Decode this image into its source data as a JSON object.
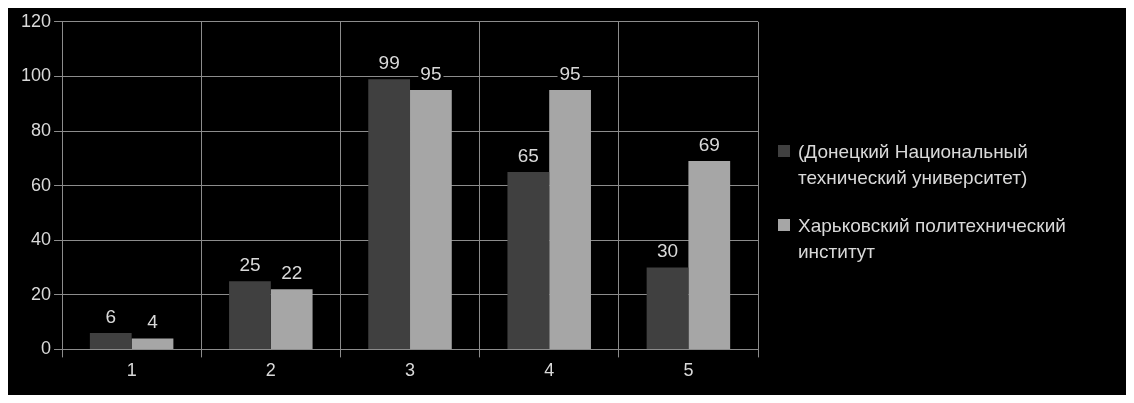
{
  "chart_data": {
    "type": "bar",
    "categories": [
      "1",
      "2",
      "3",
      "4",
      "5"
    ],
    "series": [
      {
        "name": "(Донецкий Национальный технический университет)",
        "color": "#404040",
        "values": [
          6,
          25,
          99,
          65,
          30
        ]
      },
      {
        "name": "Харьковский политехнический институт",
        "color": "#a6a6a6",
        "values": [
          4,
          22,
          95,
          95,
          69
        ]
      }
    ],
    "ylim": [
      0,
      120
    ],
    "yticks": [
      0,
      20,
      40,
      60,
      80,
      100,
      120
    ],
    "grid": true,
    "legend": "right",
    "data_labels": true
  }
}
